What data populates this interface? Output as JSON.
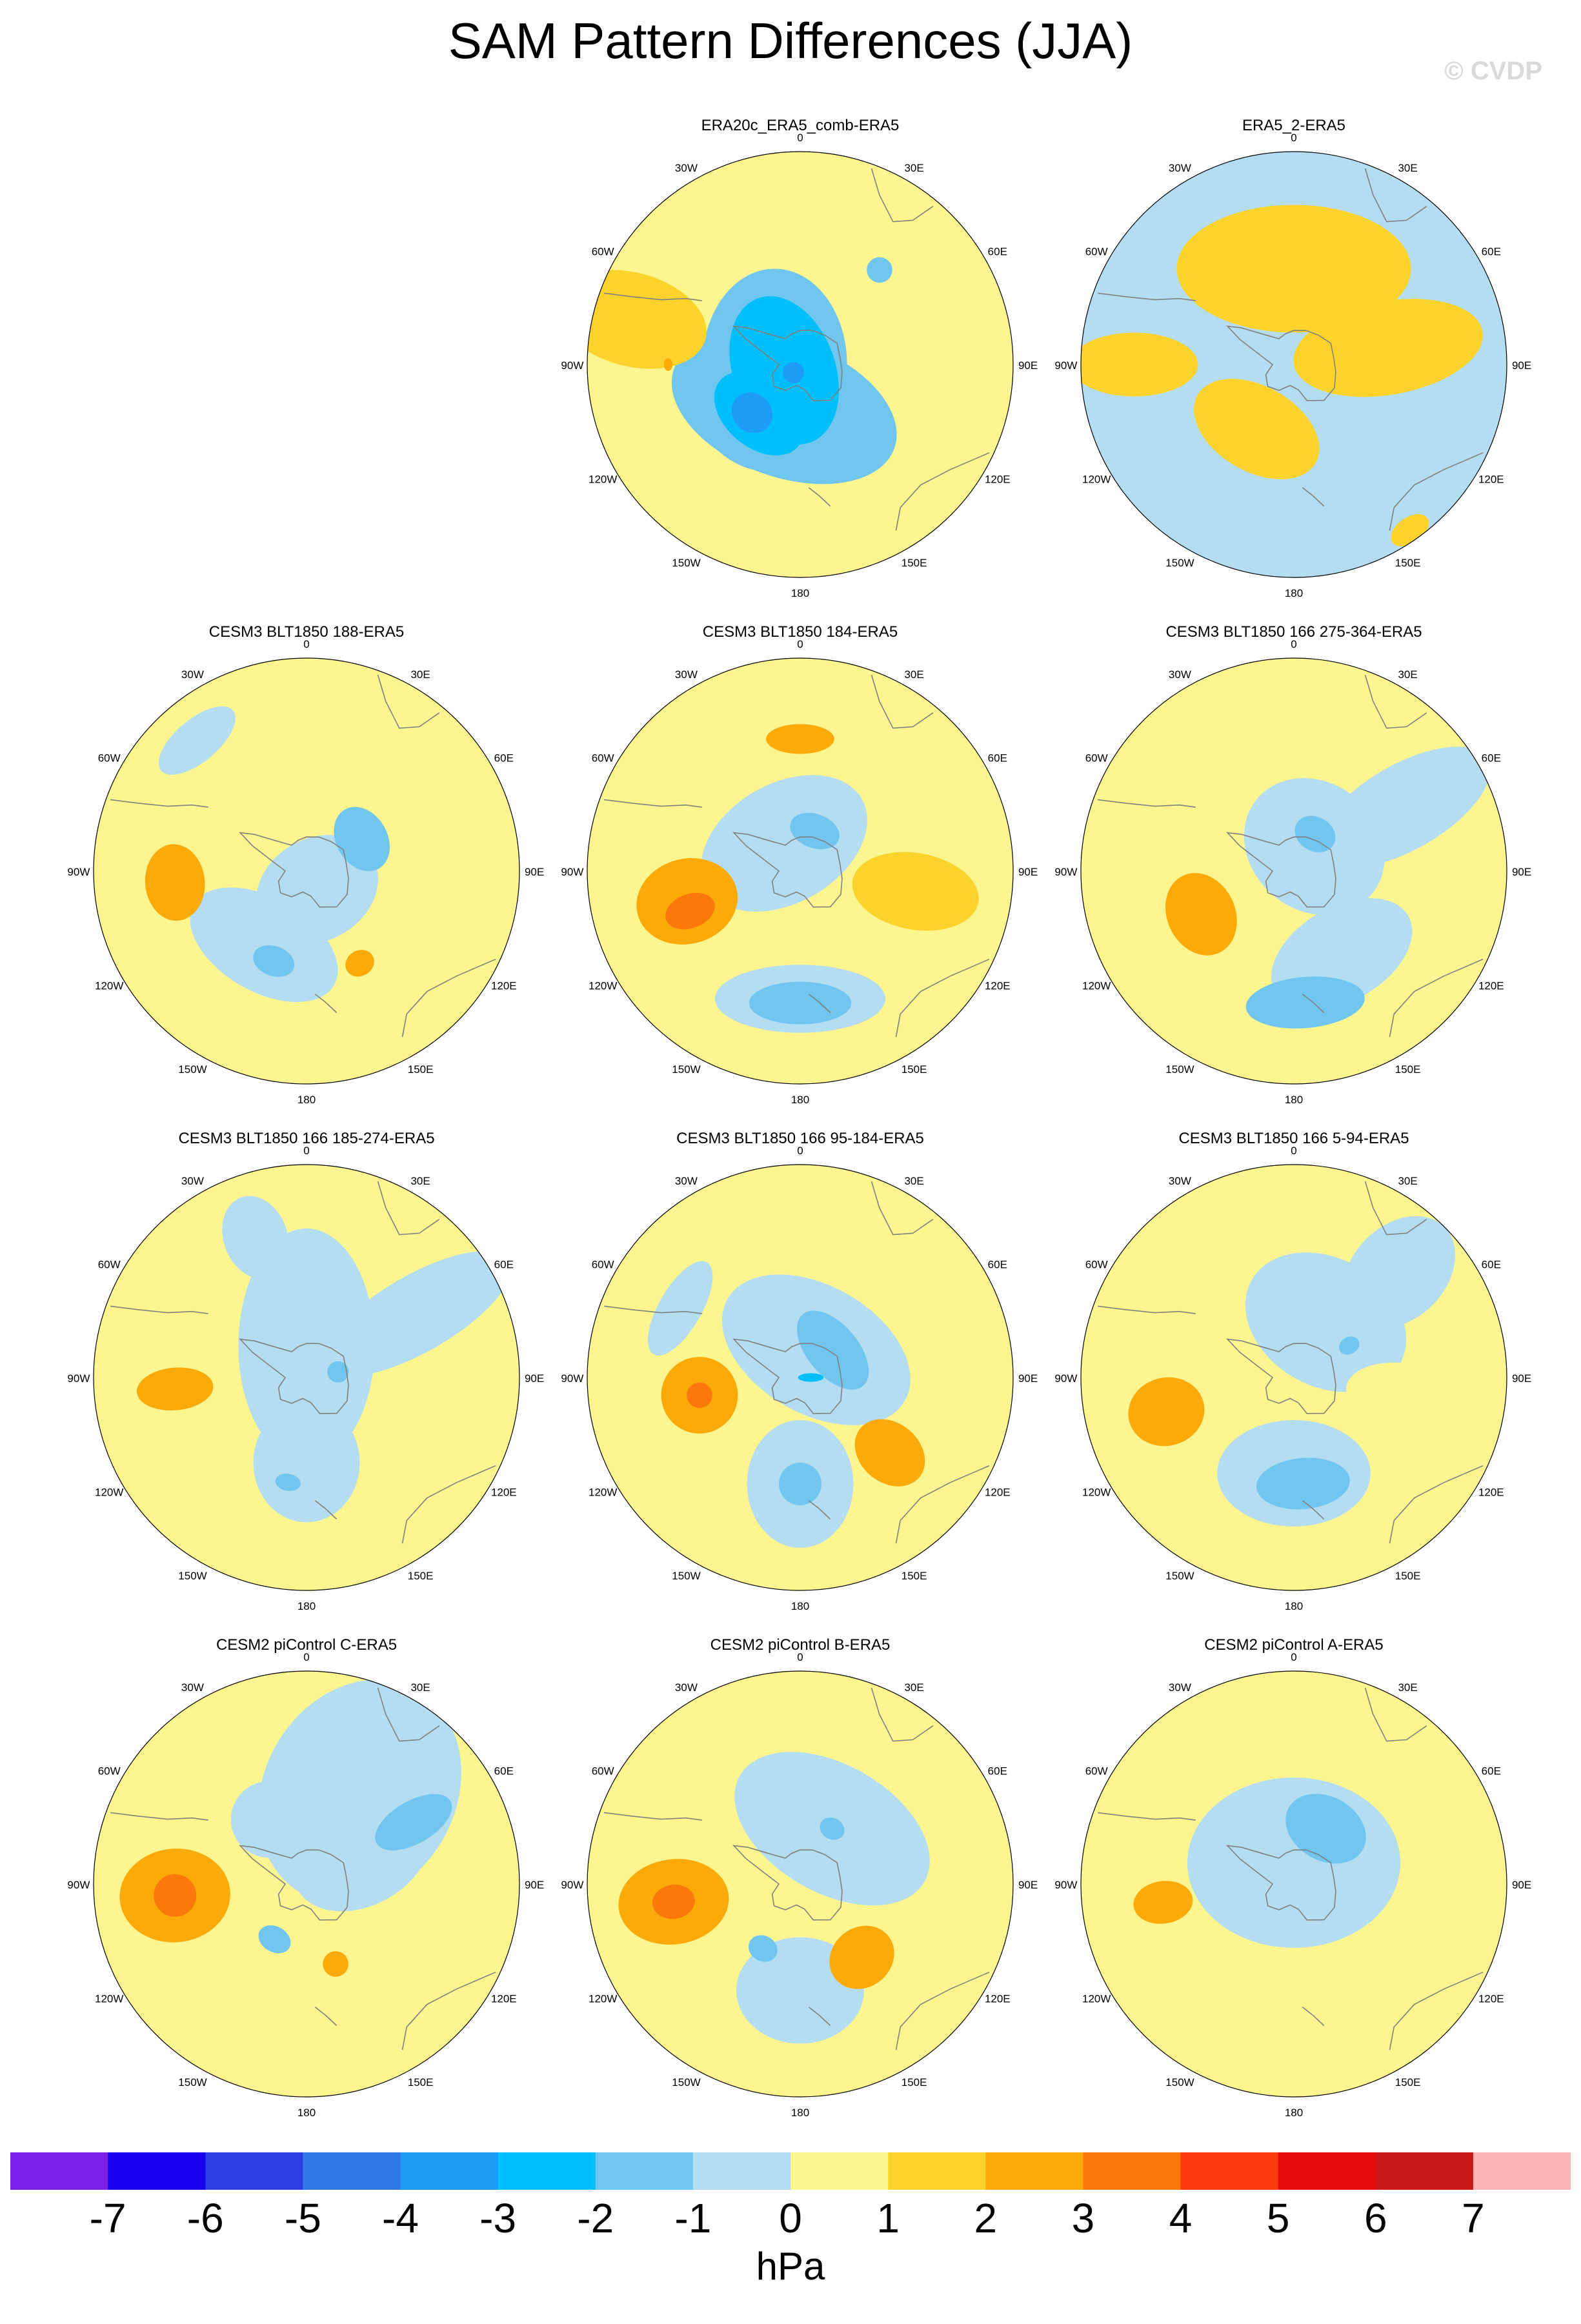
{
  "figure": {
    "title": "SAM Pattern Differences (JJA)",
    "copyright": "© CVDP",
    "units": "hPa"
  },
  "chart_data": {
    "type": "polar_stereographic_contour_maps",
    "variable": "SAM pattern difference",
    "season": "JJA",
    "units": "hPa",
    "colorbar": {
      "levels": [
        -7,
        -6,
        -5,
        -4,
        -3,
        -2,
        -1,
        0,
        1,
        2,
        3,
        4,
        5,
        6,
        7
      ],
      "labels": [
        "-7",
        "-6",
        "-5",
        "-4",
        "-3",
        "-2",
        "-1",
        "0",
        "1",
        "2",
        "3",
        "4",
        "5",
        "6",
        "7"
      ],
      "colors": [
        "#7e1fe8",
        "#1a00f0",
        "#2c3ee0",
        "#3378e8",
        "#1e9bf5",
        "#00bffa",
        "#70c6ee",
        "#b4ddf2",
        "#fdf58f",
        "#fcd32c",
        "#fcaa0a",
        "#fb780b",
        "#fb3a0d",
        "#e60a0a",
        "#c71818",
        "#fcb4b4"
      ]
    },
    "longitude_labels": [
      "0",
      "30E",
      "60E",
      "90E",
      "120E",
      "150E",
      "180",
      "150W",
      "120W",
      "90W",
      "60W",
      "30W"
    ],
    "panels": [
      {
        "title": "ERA20c_ERA5_comb-ERA5",
        "row": 0,
        "col": 1,
        "base": 0,
        "features": [
          {
            "lon": 200,
            "r": 0.22,
            "v": -2,
            "rx": 0.55,
            "ry": 0.32
          },
          {
            "lon": 270,
            "r": 0.12,
            "v": -2,
            "rx": 0.45,
            "ry": 0.34
          },
          {
            "lon": 230,
            "r": 0.3,
            "v": -2,
            "rx": 0.34,
            "ry": 0.26
          },
          {
            "lon": 250,
            "r": 0.08,
            "v": -3,
            "rx": 0.36,
            "ry": 0.24
          },
          {
            "lon": 220,
            "r": 0.3,
            "v": -3,
            "rx": 0.24,
            "ry": 0.16
          },
          {
            "lon": 225,
            "r": 0.32,
            "v": -4,
            "rx": 0.1,
            "ry": 0.09
          },
          {
            "lon": 220,
            "r": 0.05,
            "v": -4,
            "rx": 0.05,
            "ry": 0.05
          },
          {
            "lon": 40,
            "r": 0.58,
            "v": -2,
            "rx": 0.06,
            "ry": 0.06
          }
        ],
        "positive_patches": [
          {
            "lon": 285,
            "r": 0.82,
            "rx": 0.22,
            "ry": 0.36,
            "v": 1
          },
          {
            "lon": 270,
            "r": 0.62,
            "rx": 0.03,
            "ry": 0.02,
            "v": 2
          }
        ]
      },
      {
        "title": "ERA5_2-ERA5",
        "row": 0,
        "col": 2,
        "base": -1,
        "positive_patches": [
          {
            "lon": 0,
            "r": 0.45,
            "rx": 0.55,
            "ry": 0.3,
            "v": 1
          },
          {
            "lon": 210,
            "r": 0.35,
            "rx": 0.32,
            "ry": 0.2,
            "v": 1
          },
          {
            "lon": 270,
            "r": 0.75,
            "rx": 0.15,
            "ry": 0.3,
            "v": 1
          },
          {
            "lon": 80,
            "r": 0.45,
            "rx": 0.22,
            "ry": 0.45,
            "v": 1
          },
          {
            "lon": 145,
            "r": 0.95,
            "rx": 0.1,
            "ry": 0.06,
            "v": 1
          }
        ],
        "features": []
      },
      {
        "title": "CESM3 BLT1850 188-ERA5",
        "row": 1,
        "col": 0,
        "base": 0,
        "features": [
          {
            "lon": 150,
            "r": 0.1,
            "v": -1,
            "rx": 0.3,
            "ry": 0.24
          },
          {
            "lon": 210,
            "r": 0.4,
            "v": -1,
            "rx": 0.38,
            "ry": 0.22
          },
          {
            "lon": 320,
            "r": 0.8,
            "v": -1,
            "rx": 0.22,
            "ry": 0.1
          },
          {
            "lon": 60,
            "r": 0.3,
            "v": -2,
            "rx": 0.16,
            "ry": 0.12
          },
          {
            "lon": 200,
            "r": 0.45,
            "v": -2,
            "rx": 0.1,
            "ry": 0.07
          }
        ],
        "positive_patches": [
          {
            "lon": 265,
            "r": 0.62,
            "rx": 0.18,
            "ry": 0.14,
            "v": 2
          },
          {
            "lon": 150,
            "r": 0.5,
            "rx": 0.07,
            "ry": 0.06,
            "v": 2
          }
        ]
      },
      {
        "title": "CESM3 BLT1850 184-ERA5",
        "row": 1,
        "col": 1,
        "base": 0,
        "features": [
          {
            "lon": 330,
            "r": 0.15,
            "v": -1,
            "rx": 0.42,
            "ry": 0.28
          },
          {
            "lon": 180,
            "r": 0.6,
            "v": -1,
            "rx": 0.4,
            "ry": 0.16
          },
          {
            "lon": 20,
            "r": 0.2,
            "v": -2,
            "rx": 0.12,
            "ry": 0.08
          },
          {
            "lon": 180,
            "r": 0.62,
            "v": -2,
            "rx": 0.24,
            "ry": 0.1
          }
        ],
        "positive_patches": [
          {
            "lon": 0,
            "r": 0.62,
            "rx": 0.16,
            "ry": 0.07,
            "v": 2
          },
          {
            "lon": 255,
            "r": 0.55,
            "rx": 0.2,
            "ry": 0.24,
            "v": 2
          },
          {
            "lon": 250,
            "r": 0.55,
            "rx": 0.08,
            "ry": 0.12,
            "v": 3
          },
          {
            "lon": 100,
            "r": 0.55,
            "rx": 0.18,
            "ry": 0.3,
            "v": 1
          }
        ]
      },
      {
        "title": "CESM3 BLT1850 166 275-364-ERA5",
        "row": 1,
        "col": 2,
        "base": 0,
        "features": [
          {
            "lon": 40,
            "r": 0.15,
            "v": -1,
            "rx": 0.35,
            "ry": 0.3
          },
          {
            "lon": 150,
            "r": 0.45,
            "v": -1,
            "rx": 0.36,
            "ry": 0.22
          },
          {
            "lon": 60,
            "r": 0.6,
            "v": -1,
            "rx": 0.2,
            "ry": 0.45
          },
          {
            "lon": 175,
            "r": 0.62,
            "v": -2,
            "rx": 0.28,
            "ry": 0.12
          },
          {
            "lon": 30,
            "r": 0.2,
            "v": -2,
            "rx": 0.1,
            "ry": 0.08
          }
        ],
        "positive_patches": [
          {
            "lon": 245,
            "r": 0.48,
            "rx": 0.2,
            "ry": 0.16,
            "v": 2
          }
        ]
      },
      {
        "title": "CESM3 BLT1850 166 185-274-ERA5",
        "row": 2,
        "col": 0,
        "base": 0,
        "features": [
          {
            "lon": 0,
            "r": 0.15,
            "v": -1,
            "rx": 0.32,
            "ry": 0.55
          },
          {
            "lon": 60,
            "r": 0.6,
            "v": -1,
            "rx": 0.18,
            "ry": 0.5
          },
          {
            "lon": 340,
            "r": 0.7,
            "v": -1,
            "rx": 0.15,
            "ry": 0.2
          },
          {
            "lon": 180,
            "r": 0.4,
            "v": -1,
            "rx": 0.25,
            "ry": 0.28
          },
          {
            "lon": 80,
            "r": 0.15,
            "v": -2,
            "rx": 0.05,
            "ry": 0.05
          },
          {
            "lon": 190,
            "r": 0.5,
            "v": -2,
            "rx": 0.06,
            "ry": 0.04
          }
        ],
        "positive_patches": [
          {
            "lon": 265,
            "r": 0.62,
            "rx": 0.1,
            "ry": 0.18,
            "v": 2
          }
        ]
      },
      {
        "title": "CESM3 BLT1850 166 95-184-ERA5",
        "row": 2,
        "col": 1,
        "base": 0,
        "features": [
          {
            "lon": 30,
            "r": 0.15,
            "v": -1,
            "rx": 0.48,
            "ry": 0.3
          },
          {
            "lon": 180,
            "r": 0.5,
            "v": -1,
            "rx": 0.25,
            "ry": 0.3
          },
          {
            "lon": 300,
            "r": 0.65,
            "v": -1,
            "rx": 0.25,
            "ry": 0.1
          },
          {
            "lon": 50,
            "r": 0.2,
            "v": -2,
            "rx": 0.22,
            "ry": 0.12
          },
          {
            "lon": 180,
            "r": 0.5,
            "v": -2,
            "rx": 0.1,
            "ry": 0.1
          },
          {
            "lon": 90,
            "r": 0.05,
            "v": -3,
            "rx": 0.02,
            "ry": 0.06
          }
        ],
        "positive_patches": [
          {
            "lon": 260,
            "r": 0.48,
            "rx": 0.18,
            "ry": 0.18,
            "v": 2
          },
          {
            "lon": 260,
            "r": 0.48,
            "rx": 0.06,
            "ry": 0.06,
            "v": 3
          },
          {
            "lon": 130,
            "r": 0.55,
            "rx": 0.14,
            "ry": 0.18,
            "v": 2
          }
        ]
      },
      {
        "title": "CESM3 BLT1850 166 5-94-ERA5",
        "row": 2,
        "col": 2,
        "base": 0,
        "features": [
          {
            "lon": 30,
            "r": 0.3,
            "v": -1,
            "rx": 0.4,
            "ry": 0.3
          },
          {
            "lon": 180,
            "r": 0.45,
            "v": -1,
            "rx": 0.36,
            "ry": 0.25
          },
          {
            "lon": 45,
            "r": 0.7,
            "v": -1,
            "rx": 0.22,
            "ry": 0.3
          },
          {
            "lon": 175,
            "r": 0.5,
            "v": -2,
            "rx": 0.22,
            "ry": 0.12
          },
          {
            "lon": 60,
            "r": 0.3,
            "v": -2,
            "rx": 0.04,
            "ry": 0.05
          }
        ],
        "positive_patches": [
          {
            "lon": 255,
            "r": 0.62,
            "rx": 0.16,
            "ry": 0.18,
            "v": 2
          },
          {
            "lon": 100,
            "r": 0.55,
            "rx": 0.16,
            "ry": 0.3,
            "v": 0
          }
        ]
      },
      {
        "title": "CESM2 piControl C-ERA5",
        "row": 3,
        "col": 0,
        "base": 0,
        "features": [
          {
            "lon": 30,
            "r": 0.5,
            "v": -1,
            "rx": 0.45,
            "ry": 0.55
          },
          {
            "lon": 60,
            "r": 0.3,
            "v": -1,
            "rx": 0.25,
            "ry": 0.35
          },
          {
            "lon": 330,
            "r": 0.35,
            "v": -1,
            "rx": 0.18,
            "ry": 0.18
          },
          {
            "lon": 60,
            "r": 0.58,
            "v": -2,
            "rx": 0.1,
            "ry": 0.2
          },
          {
            "lon": 210,
            "r": 0.3,
            "v": -2,
            "rx": 0.08,
            "ry": 0.06
          }
        ],
        "positive_patches": [
          {
            "lon": 265,
            "r": 0.62,
            "rx": 0.22,
            "ry": 0.26,
            "v": 2
          },
          {
            "lon": 265,
            "r": 0.62,
            "rx": 0.1,
            "ry": 0.1,
            "v": 3
          },
          {
            "lon": 160,
            "r": 0.4,
            "rx": 0.06,
            "ry": 0.06,
            "v": 2
          }
        ]
      },
      {
        "title": "CESM2 piControl B-ERA5",
        "row": 3,
        "col": 1,
        "base": 0,
        "features": [
          {
            "lon": 30,
            "r": 0.3,
            "v": -1,
            "rx": 0.5,
            "ry": 0.3
          },
          {
            "lon": 180,
            "r": 0.5,
            "v": -1,
            "rx": 0.3,
            "ry": 0.25
          },
          {
            "lon": 30,
            "r": 0.3,
            "v": -2,
            "rx": 0.06,
            "ry": 0.05
          },
          {
            "lon": 210,
            "r": 0.35,
            "v": -2,
            "rx": 0.07,
            "ry": 0.06
          }
        ],
        "positive_patches": [
          {
            "lon": 262,
            "r": 0.6,
            "rx": 0.2,
            "ry": 0.26,
            "v": 2
          },
          {
            "lon": 262,
            "r": 0.6,
            "rx": 0.08,
            "ry": 0.1,
            "v": 3
          },
          {
            "lon": 140,
            "r": 0.45,
            "rx": 0.16,
            "ry": 0.14,
            "v": 2
          }
        ]
      },
      {
        "title": "CESM2 piControl A-ERA5",
        "row": 3,
        "col": 2,
        "base": 0,
        "features": [
          {
            "lon": 0,
            "r": 0.1,
            "v": -1,
            "rx": 0.5,
            "ry": 0.4
          },
          {
            "lon": 30,
            "r": 0.3,
            "v": -2,
            "rx": 0.2,
            "ry": 0.15
          }
        ],
        "positive_patches": [
          {
            "lon": 262,
            "r": 0.62,
            "rx": 0.1,
            "ry": 0.14,
            "v": 2
          }
        ]
      }
    ]
  }
}
